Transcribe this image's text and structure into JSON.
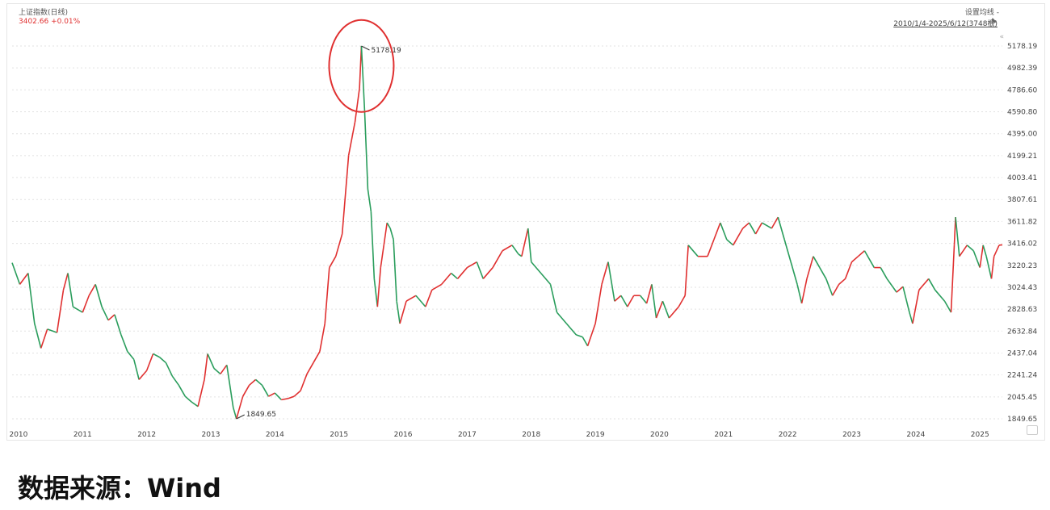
{
  "chart_data": {
    "type": "line",
    "series_name": "上证指数(日线)",
    "quote": "3402.66 +0.01%",
    "settings_label": "设置均线 -",
    "date_range_label": "2010/1/4-2025/6/12(3748根)",
    "y_ticks": [
      "5178.19",
      "4982.39",
      "4786.60",
      "4590.80",
      "4395.00",
      "4199.21",
      "4003.41",
      "3807.61",
      "3611.82",
      "3416.02",
      "3220.23",
      "3024.43",
      "2828.63",
      "2632.84",
      "2437.04",
      "2241.24",
      "2045.45",
      "1849.65"
    ],
    "x_ticks": [
      "2010",
      "2011",
      "2012",
      "2013",
      "2014",
      "2015",
      "2016",
      "2017",
      "2018",
      "2019",
      "2020",
      "2021",
      "2022",
      "2023",
      "2024",
      "2025"
    ],
    "ylim": [
      1849.65,
      5178.19
    ],
    "xlim": [
      2010.0,
      2025.45
    ],
    "annotations": [
      {
        "label": "5178.19",
        "x": 2015.45,
        "y": 5178.19
      },
      {
        "label": "1849.65",
        "x": 2013.5,
        "y": 1849.65
      }
    ],
    "highlight": {
      "x": 2015.45,
      "y": 5000,
      "color": "#e03030"
    },
    "colors": {
      "up": "#e03030",
      "down": "#2a9d5c",
      "grid": "#e2e2e2"
    },
    "points": [
      [
        2010.0,
        3243
      ],
      [
        2010.12,
        3050
      ],
      [
        2010.25,
        3150
      ],
      [
        2010.35,
        2700
      ],
      [
        2010.45,
        2480
      ],
      [
        2010.55,
        2650
      ],
      [
        2010.7,
        2620
      ],
      [
        2010.8,
        3000
      ],
      [
        2010.87,
        3150
      ],
      [
        2010.95,
        2850
      ],
      [
        2011.1,
        2800
      ],
      [
        2011.2,
        2950
      ],
      [
        2011.3,
        3050
      ],
      [
        2011.4,
        2850
      ],
      [
        2011.5,
        2730
      ],
      [
        2011.6,
        2780
      ],
      [
        2011.7,
        2600
      ],
      [
        2011.8,
        2450
      ],
      [
        2011.9,
        2380
      ],
      [
        2011.98,
        2200
      ],
      [
        2012.1,
        2280
      ],
      [
        2012.2,
        2430
      ],
      [
        2012.3,
        2400
      ],
      [
        2012.4,
        2350
      ],
      [
        2012.5,
        2230
      ],
      [
        2012.6,
        2150
      ],
      [
        2012.7,
        2050
      ],
      [
        2012.8,
        2000
      ],
      [
        2012.9,
        1960
      ],
      [
        2013.0,
        2200
      ],
      [
        2013.05,
        2430
      ],
      [
        2013.15,
        2300
      ],
      [
        2013.25,
        2250
      ],
      [
        2013.35,
        2330
      ],
      [
        2013.45,
        1950
      ],
      [
        2013.5,
        1849.65
      ],
      [
        2013.6,
        2050
      ],
      [
        2013.7,
        2150
      ],
      [
        2013.8,
        2200
      ],
      [
        2013.9,
        2150
      ],
      [
        2014.0,
        2050
      ],
      [
        2014.1,
        2080
      ],
      [
        2014.2,
        2020
      ],
      [
        2014.3,
        2030
      ],
      [
        2014.4,
        2050
      ],
      [
        2014.5,
        2100
      ],
      [
        2014.6,
        2250
      ],
      [
        2014.7,
        2350
      ],
      [
        2014.8,
        2450
      ],
      [
        2014.88,
        2700
      ],
      [
        2014.95,
        3200
      ],
      [
        2015.05,
        3300
      ],
      [
        2015.15,
        3500
      ],
      [
        2015.25,
        4200
      ],
      [
        2015.35,
        4500
      ],
      [
        2015.42,
        4800
      ],
      [
        2015.45,
        5178.19
      ],
      [
        2015.5,
        4600
      ],
      [
        2015.55,
        3900
      ],
      [
        2015.6,
        3700
      ],
      [
        2015.65,
        3100
      ],
      [
        2015.7,
        2850
      ],
      [
        2015.75,
        3200
      ],
      [
        2015.8,
        3400
      ],
      [
        2015.85,
        3600
      ],
      [
        2015.9,
        3550
      ],
      [
        2015.95,
        3450
      ],
      [
        2016.0,
        2900
      ],
      [
        2016.05,
        2700
      ],
      [
        2016.15,
        2900
      ],
      [
        2016.3,
        2950
      ],
      [
        2016.45,
        2850
      ],
      [
        2016.55,
        3000
      ],
      [
        2016.7,
        3050
      ],
      [
        2016.85,
        3150
      ],
      [
        2016.95,
        3100
      ],
      [
        2017.1,
        3200
      ],
      [
        2017.25,
        3250
      ],
      [
        2017.35,
        3100
      ],
      [
        2017.5,
        3200
      ],
      [
        2017.65,
        3350
      ],
      [
        2017.8,
        3400
      ],
      [
        2017.9,
        3320
      ],
      [
        2017.95,
        3300
      ],
      [
        2018.05,
        3550
      ],
      [
        2018.1,
        3250
      ],
      [
        2018.25,
        3150
      ],
      [
        2018.4,
        3050
      ],
      [
        2018.5,
        2800
      ],
      [
        2018.65,
        2700
      ],
      [
        2018.8,
        2600
      ],
      [
        2018.9,
        2580
      ],
      [
        2018.98,
        2500
      ],
      [
        2019.1,
        2700
      ],
      [
        2019.2,
        3050
      ],
      [
        2019.3,
        3250
      ],
      [
        2019.4,
        2900
      ],
      [
        2019.5,
        2950
      ],
      [
        2019.6,
        2850
      ],
      [
        2019.7,
        2950
      ],
      [
        2019.8,
        2950
      ],
      [
        2019.9,
        2880
      ],
      [
        2019.98,
        3050
      ],
      [
        2020.05,
        2750
      ],
      [
        2020.15,
        2900
      ],
      [
        2020.25,
        2750
      ],
      [
        2020.4,
        2850
      ],
      [
        2020.5,
        2950
      ],
      [
        2020.55,
        3400
      ],
      [
        2020.7,
        3300
      ],
      [
        2020.85,
        3300
      ],
      [
        2020.95,
        3450
      ],
      [
        2021.05,
        3600
      ],
      [
        2021.15,
        3450
      ],
      [
        2021.25,
        3400
      ],
      [
        2021.4,
        3550
      ],
      [
        2021.5,
        3600
      ],
      [
        2021.6,
        3500
      ],
      [
        2021.7,
        3600
      ],
      [
        2021.85,
        3550
      ],
      [
        2021.95,
        3650
      ],
      [
        2022.05,
        3450
      ],
      [
        2022.15,
        3250
      ],
      [
        2022.25,
        3050
      ],
      [
        2022.32,
        2880
      ],
      [
        2022.4,
        3100
      ],
      [
        2022.5,
        3300
      ],
      [
        2022.6,
        3200
      ],
      [
        2022.7,
        3100
      ],
      [
        2022.8,
        2950
      ],
      [
        2022.9,
        3050
      ],
      [
        2023.0,
        3100
      ],
      [
        2023.1,
        3250
      ],
      [
        2023.2,
        3300
      ],
      [
        2023.3,
        3350
      ],
      [
        2023.45,
        3200
      ],
      [
        2023.55,
        3200
      ],
      [
        2023.65,
        3100
      ],
      [
        2023.8,
        2980
      ],
      [
        2023.9,
        3030
      ],
      [
        2024.0,
        2800
      ],
      [
        2024.05,
        2700
      ],
      [
        2024.15,
        3000
      ],
      [
        2024.3,
        3100
      ],
      [
        2024.4,
        3000
      ],
      [
        2024.55,
        2900
      ],
      [
        2024.65,
        2800
      ],
      [
        2024.7,
        3400
      ],
      [
        2024.72,
        3650
      ],
      [
        2024.78,
        3300
      ],
      [
        2024.9,
        3400
      ],
      [
        2025.0,
        3350
      ],
      [
        2025.1,
        3200
      ],
      [
        2025.15,
        3400
      ],
      [
        2025.2,
        3300
      ],
      [
        2025.28,
        3100
      ],
      [
        2025.32,
        3300
      ],
      [
        2025.4,
        3400
      ],
      [
        2025.45,
        3402.66
      ]
    ]
  },
  "footer": {
    "source": "数据来源：Wind"
  }
}
